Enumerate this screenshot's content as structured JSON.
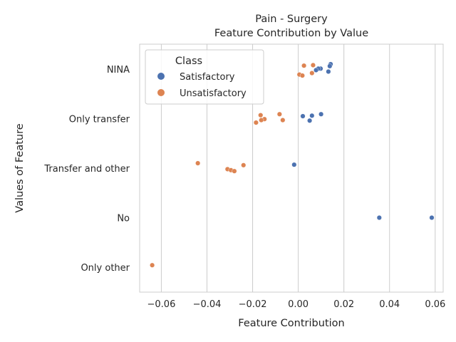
{
  "chart_data": {
    "type": "scatter",
    "title": [
      "Pain - Surgery",
      "Feature Contribution by Value"
    ],
    "xlabel": "Feature Contribution",
    "ylabel": "Values of Feature",
    "xlim": [
      -0.0695,
      0.0635
    ],
    "x_ticks": [
      -0.06,
      -0.04,
      -0.02,
      0.0,
      0.02,
      0.04,
      0.06
    ],
    "x_tick_labels": [
      "−0.06",
      "−0.04",
      "−0.02",
      "0.00",
      "0.02",
      "0.04",
      "0.06"
    ],
    "categories": [
      "NINA",
      "Only transfer",
      "Transfer and other",
      "No",
      "Only other"
    ],
    "grid": "vertical",
    "legend": {
      "title": "Class",
      "placement": "top-left"
    },
    "series": [
      {
        "name": "Satisfactory",
        "color": "#4c72b0",
        "points": [
          {
            "category": "NINA",
            "x": 0.0142,
            "jitter": -0.1
          },
          {
            "category": "NINA",
            "x": 0.0138,
            "jitter": -0.06
          },
          {
            "category": "NINA",
            "x": 0.0132,
            "jitter": 0.05
          },
          {
            "category": "NINA",
            "x": 0.0098,
            "jitter": -0.01
          },
          {
            "category": "NINA",
            "x": 0.0088,
            "jitter": -0.01
          },
          {
            "category": "NINA",
            "x": 0.0078,
            "jitter": 0.02
          },
          {
            "category": "Only transfer",
            "x": 0.01,
            "jitter": -0.09
          },
          {
            "category": "Only transfer",
            "x": 0.006,
            "jitter": -0.06
          },
          {
            "category": "Only transfer",
            "x": 0.002,
            "jitter": -0.05
          },
          {
            "category": "Only transfer",
            "x": 0.005,
            "jitter": 0.04
          },
          {
            "category": "Transfer and other",
            "x": -0.0018,
            "jitter": -0.07
          },
          {
            "category": "No",
            "x": 0.0355,
            "jitter": 0.0
          },
          {
            "category": "No",
            "x": 0.0585,
            "jitter": 0.0
          }
        ]
      },
      {
        "name": "Unsatisfactory",
        "color": "#dd8452",
        "points": [
          {
            "category": "NINA",
            "x": 0.0065,
            "jitter": -0.08
          },
          {
            "category": "NINA",
            "x": 0.0025,
            "jitter": -0.07
          },
          {
            "category": "NINA",
            "x": 0.006,
            "jitter": 0.08
          },
          {
            "category": "NINA",
            "x": 0.0005,
            "jitter": 0.11
          },
          {
            "category": "NINA",
            "x": 0.0018,
            "jitter": 0.13
          },
          {
            "category": "Only transfer",
            "x": -0.0165,
            "jitter": -0.07
          },
          {
            "category": "Only transfer",
            "x": -0.0082,
            "jitter": -0.09
          },
          {
            "category": "Only transfer",
            "x": -0.0148,
            "jitter": 0.01
          },
          {
            "category": "Only transfer",
            "x": -0.0162,
            "jitter": 0.03
          },
          {
            "category": "Only transfer",
            "x": -0.0068,
            "jitter": 0.03
          },
          {
            "category": "Only transfer",
            "x": -0.0185,
            "jitter": 0.08
          },
          {
            "category": "Transfer and other",
            "x": -0.044,
            "jitter": -0.1
          },
          {
            "category": "Transfer and other",
            "x": -0.024,
            "jitter": -0.06
          },
          {
            "category": "Transfer and other",
            "x": -0.031,
            "jitter": 0.02
          },
          {
            "category": "Transfer and other",
            "x": -0.0295,
            "jitter": 0.04
          },
          {
            "category": "Transfer and other",
            "x": -0.028,
            "jitter": 0.06
          },
          {
            "category": "Only other",
            "x": -0.064,
            "jitter": -0.04
          }
        ]
      }
    ]
  }
}
